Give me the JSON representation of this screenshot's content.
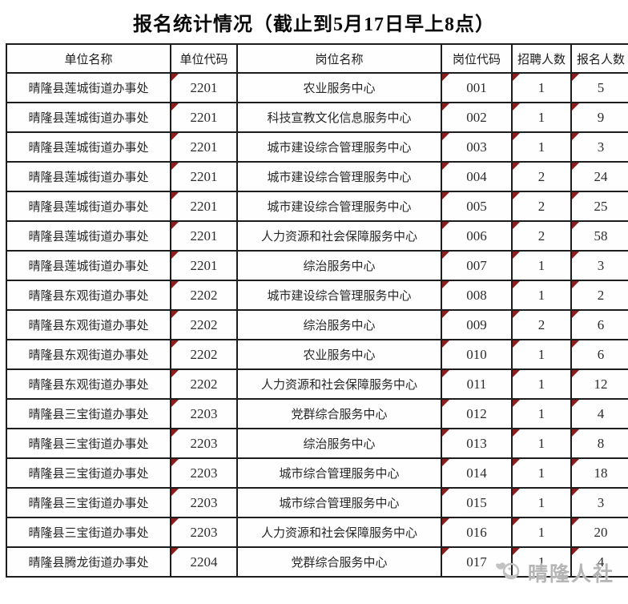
{
  "title": "报名统计情况（截止到5月17日早上8点）",
  "table": {
    "columns": [
      "单位名称",
      "单位代码",
      "岗位名称",
      "岗位代码",
      "招聘人数",
      "报名人数"
    ],
    "column_keys": [
      "unit-name",
      "unit-code",
      "position-name",
      "position-code",
      "recruit-count",
      "applicant-count"
    ],
    "numeric_column_indexes": [
      1,
      3,
      4,
      5
    ],
    "comment_marker_color": "#8b1e1e",
    "grid_color": "#1d1d1d",
    "rows": [
      [
        "晴隆县莲城街道办事处",
        "2201",
        "农业服务中心",
        "001",
        "1",
        "5"
      ],
      [
        "晴隆县莲城街道办事处",
        "2201",
        "科技宣教文化信息服务中心",
        "002",
        "1",
        "9"
      ],
      [
        "晴隆县莲城街道办事处",
        "2201",
        "城市建设综合管理服务中心",
        "003",
        "1",
        "3"
      ],
      [
        "晴隆县莲城街道办事处",
        "2201",
        "城市建设综合管理服务中心",
        "004",
        "2",
        "24"
      ],
      [
        "晴隆县莲城街道办事处",
        "2201",
        "城市建设综合管理服务中心",
        "005",
        "2",
        "25"
      ],
      [
        "晴隆县莲城街道办事处",
        "2201",
        "人力资源和社会保障服务中心",
        "006",
        "2",
        "58"
      ],
      [
        "晴隆县莲城街道办事处",
        "2201",
        "综治服务中心",
        "007",
        "1",
        "3"
      ],
      [
        "晴隆县东观街道办事处",
        "2202",
        "城市建设综合管理服务中心",
        "008",
        "1",
        "2"
      ],
      [
        "晴隆县东观街道办事处",
        "2202",
        "综治服务中心",
        "009",
        "2",
        "6"
      ],
      [
        "晴隆县东观街道办事处",
        "2202",
        "农业服务中心",
        "010",
        "1",
        "6"
      ],
      [
        "晴隆县东观街道办事处",
        "2202",
        "人力资源和社会保障服务中心",
        "011",
        "1",
        "12"
      ],
      [
        "晴隆县三宝街道办事处",
        "2203",
        "党群综合服务中心",
        "012",
        "1",
        "4"
      ],
      [
        "晴隆县三宝街道办事处",
        "2203",
        "综治服务中心",
        "013",
        "1",
        "8"
      ],
      [
        "晴隆县三宝街道办事处",
        "2203",
        "城市综合管理服务中心",
        "014",
        "1",
        "18"
      ],
      [
        "晴隆县三宝街道办事处",
        "2203",
        "城市综合管理服务中心",
        "015",
        "1",
        "3"
      ],
      [
        "晴隆县三宝街道办事处",
        "2203",
        "人力资源和社会保障服务中心",
        "016",
        "1",
        "20"
      ],
      [
        "晴隆县腾龙街道办事处",
        "2204",
        "党群综合服务中心",
        "017",
        "1",
        "4"
      ]
    ]
  },
  "watermark": {
    "text": "晴隆人社",
    "logo": "bird-logo-icon",
    "color": "#b5b5b5"
  }
}
